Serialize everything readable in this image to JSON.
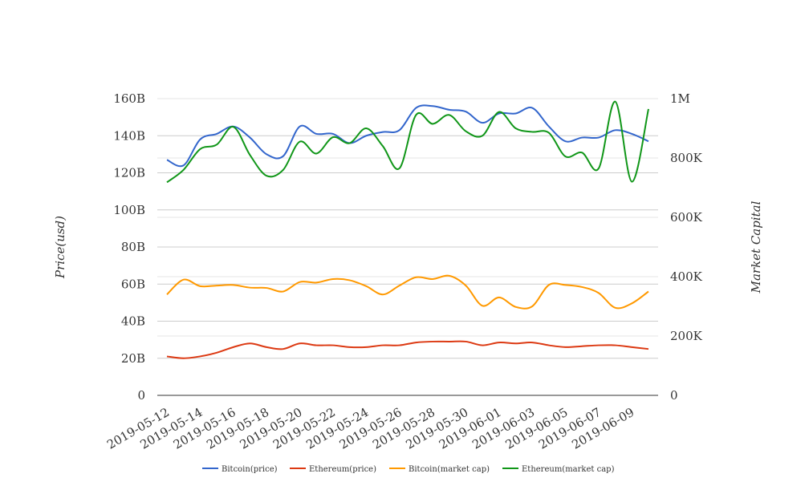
{
  "chart_data": {
    "type": "line",
    "x": [
      "2019-05-12",
      "2019-05-13",
      "2019-05-14",
      "2019-05-15",
      "2019-05-16",
      "2019-05-17",
      "2019-05-18",
      "2019-05-19",
      "2019-05-20",
      "2019-05-21",
      "2019-05-22",
      "2019-05-23",
      "2019-05-24",
      "2019-05-25",
      "2019-05-26",
      "2019-05-27",
      "2019-05-28",
      "2019-05-29",
      "2019-05-30",
      "2019-05-31",
      "2019-06-01",
      "2019-06-02",
      "2019-06-03",
      "2019-06-04",
      "2019-06-05",
      "2019-06-06",
      "2019-06-07",
      "2019-06-08",
      "2019-06-09",
      "2019-06-10"
    ],
    "x_tick_labels": [
      "2019-05-12",
      "2019-05-14",
      "2019-05-16",
      "2019-05-18",
      "2019-05-20",
      "2019-05-22",
      "2019-05-24",
      "2019-05-26",
      "2019-05-28",
      "2019-05-30",
      "2019-06-01",
      "2019-06-03",
      "2019-06-05",
      "2019-06-07",
      "2019-06-09"
    ],
    "ylabel_left": "Price(usd)",
    "ylabel_right": "Market Capital",
    "ylim_left": [
      0,
      160
    ],
    "ylim_right": [
      0,
      1000
    ],
    "left_ticks": [
      0,
      20,
      40,
      60,
      80,
      100,
      120,
      140,
      160
    ],
    "left_tick_labels": [
      "0",
      "20B",
      "40B",
      "60B",
      "80B",
      "100B",
      "120B",
      "140B",
      "160B"
    ],
    "right_ticks": [
      0,
      200,
      400,
      600,
      800,
      1000
    ],
    "right_tick_labels": [
      "0",
      "200K",
      "400K",
      "600K",
      "800K",
      "1M"
    ],
    "grid": true,
    "legend_position": "bottom",
    "series": [
      {
        "name": "Bitcoin(price)",
        "axis": "left",
        "color": "#3366cc",
        "values": [
          127,
          124,
          138,
          141,
          145,
          139,
          130,
          129,
          145,
          141,
          141,
          136,
          140,
          142,
          143,
          155,
          156,
          154,
          153,
          147,
          152,
          152,
          155,
          145,
          137,
          139,
          139,
          143,
          141,
          137
        ]
      },
      {
        "name": "Ethereum(price)",
        "axis": "left",
        "color": "#dc3912",
        "values": [
          21,
          20,
          21,
          23,
          26,
          28,
          26,
          25,
          28,
          27,
          27,
          26,
          26,
          27,
          27,
          28.5,
          29,
          29,
          29,
          27,
          28.5,
          28,
          28.5,
          27,
          26,
          26.5,
          27,
          27,
          26,
          25
        ]
      },
      {
        "name": "Bitcoin(market cap)",
        "axis": "right",
        "color": "#ff9900",
        "values": [
          340,
          390,
          368,
          370,
          372,
          363,
          362,
          350,
          382,
          380,
          392,
          388,
          368,
          340,
          370,
          398,
          392,
          403,
          370,
          302,
          330,
          298,
          300,
          372,
          372,
          365,
          345,
          295,
          310,
          350
        ]
      },
      {
        "name": "Ethereum(market cap)",
        "axis": "right",
        "color": "#109618",
        "values": [
          718,
          760,
          830,
          845,
          905,
          810,
          740,
          760,
          855,
          815,
          870,
          850,
          900,
          840,
          765,
          945,
          915,
          945,
          890,
          875,
          955,
          900,
          888,
          885,
          805,
          818,
          765,
          990,
          720,
          965
        ]
      }
    ]
  }
}
